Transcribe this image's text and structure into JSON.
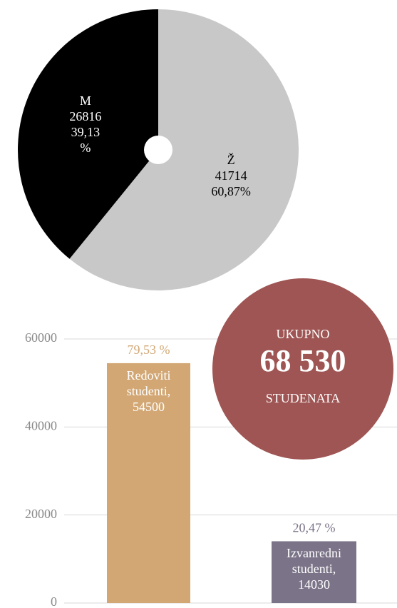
{
  "chart_data": [
    {
      "type": "pie",
      "categories": [
        "M",
        "Ž"
      ],
      "counts": [
        26816,
        41714
      ],
      "values": [
        39.13,
        60.87
      ],
      "value_labels": [
        "39,13 %",
        "60,87%"
      ],
      "colors": [
        "#000000",
        "#c8c8c8"
      ],
      "label_colors": [
        "#ffffff",
        "#000000"
      ]
    },
    {
      "type": "bar",
      "categories": [
        "Redoviti studenti,",
        "Izvanredni studenti,"
      ],
      "values": [
        54500,
        14030
      ],
      "shares": [
        79.53,
        20.47
      ],
      "share_labels": [
        "79,53 %",
        "20,47 %"
      ],
      "colors": [
        "#d2a774",
        "#7b7388"
      ],
      "ylim": [
        0,
        60000
      ],
      "yticks": [
        0,
        20000,
        40000,
        60000
      ],
      "grid": true,
      "annotation": {
        "line1": "UKUPNO",
        "total": 68530,
        "total_label": "68 530",
        "line2": "STUDENATA",
        "color": "#9e5553"
      }
    }
  ]
}
